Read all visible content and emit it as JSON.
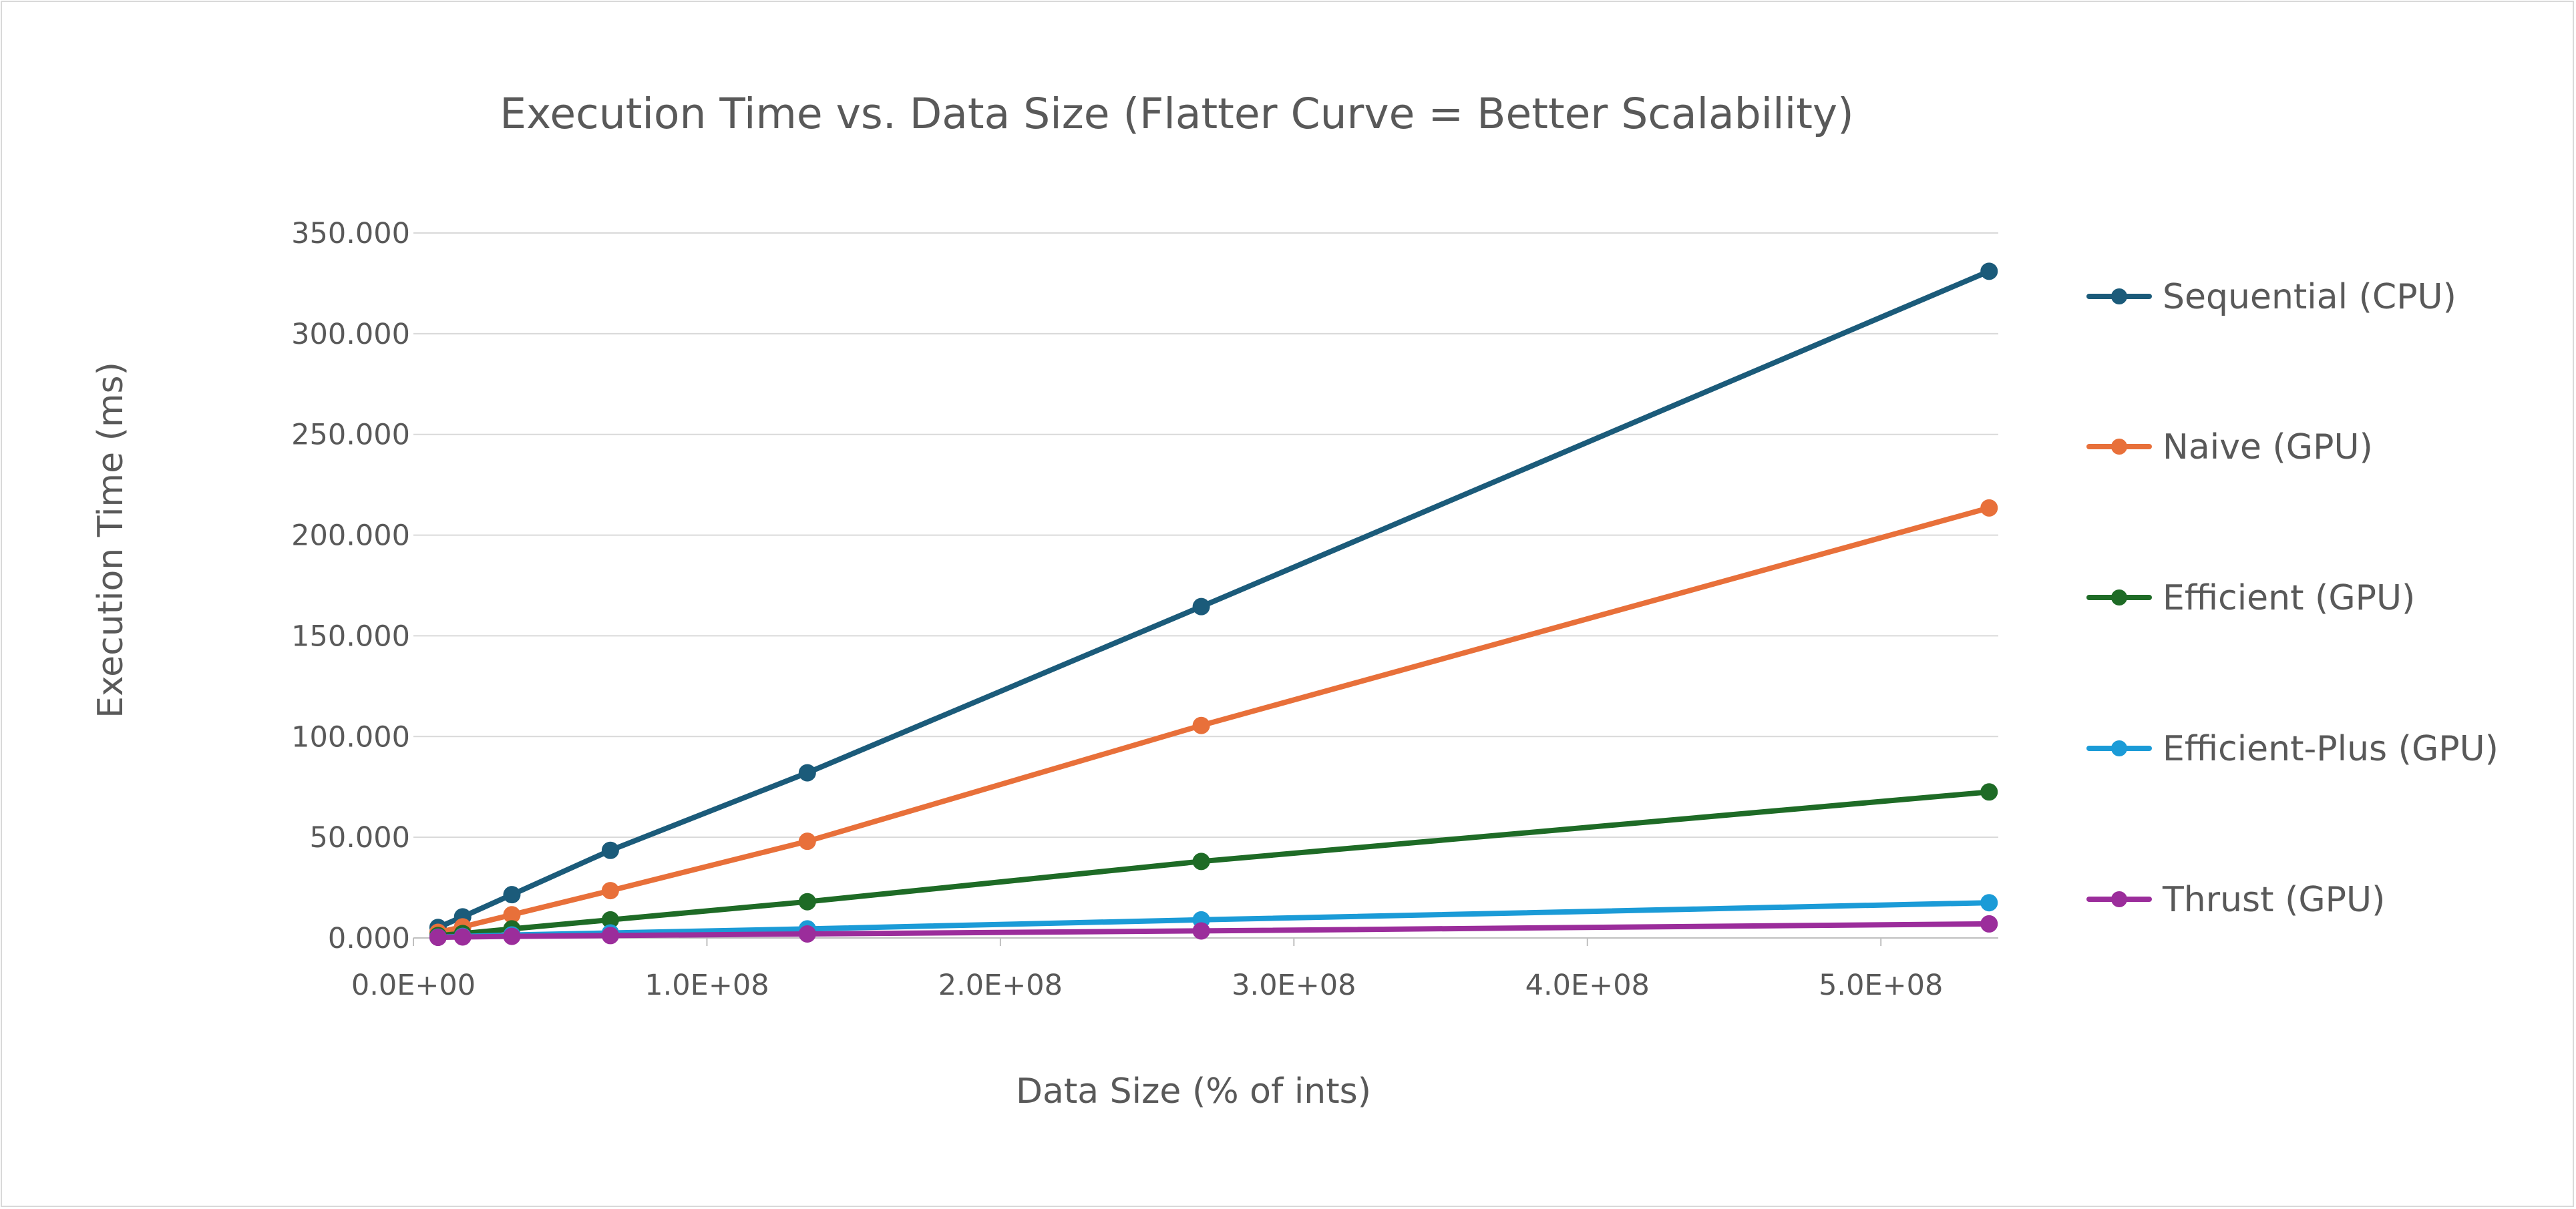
{
  "chart_data": {
    "type": "line",
    "title": "Execution Time vs. Data Size (Flatter Curve = Better Scalability)",
    "xlabel": "Data Size (% of ints)",
    "ylabel": "Execution Time (ms)",
    "xlim": [
      0,
      540000000
    ],
    "ylim": [
      0,
      350
    ],
    "x_ticks": [
      0,
      100000000,
      200000000,
      300000000,
      400000000,
      500000000
    ],
    "x_tick_labels": [
      "0.0E+00",
      "1.0E+08",
      "2.0E+08",
      "3.0E+08",
      "4.0E+08",
      "5.0E+08"
    ],
    "y_ticks": [
      0,
      50,
      100,
      150,
      200,
      250,
      300,
      350
    ],
    "y_tick_labels": [
      "0.000",
      "50.000",
      "100.000",
      "150.000",
      "200.000",
      "250.000",
      "300.000",
      "350.000"
    ],
    "grid": "horizontal",
    "legend_position": "right",
    "x": [
      8388608,
      16777216,
      33554432,
      67108864,
      134217728,
      268435456,
      536870912
    ],
    "series": [
      {
        "name": "Sequential (CPU)",
        "color": "#1b5b7a",
        "values": [
          5.2,
          10.5,
          21.5,
          43.5,
          82.0,
          164.5,
          331.0
        ]
      },
      {
        "name": "Naive (GPU)",
        "color": "#e8703a",
        "values": [
          2.8,
          5.5,
          11.5,
          23.5,
          48.0,
          105.5,
          213.5
        ]
      },
      {
        "name": "Efficient (GPU)",
        "color": "#1e6b26",
        "values": [
          1.2,
          2.2,
          4.5,
          9.0,
          18.0,
          38.0,
          72.5
        ]
      },
      {
        "name": "Efficient-Plus  (GPU)",
        "color": "#1b9bd7",
        "values": [
          0.4,
          0.8,
          1.5,
          2.5,
          4.5,
          9.0,
          17.5
        ]
      },
      {
        "name": "Thrust (GPU)",
        "color": "#9b2d9b",
        "values": [
          0.3,
          0.5,
          0.8,
          1.2,
          2.0,
          3.5,
          7.0
        ]
      }
    ]
  }
}
